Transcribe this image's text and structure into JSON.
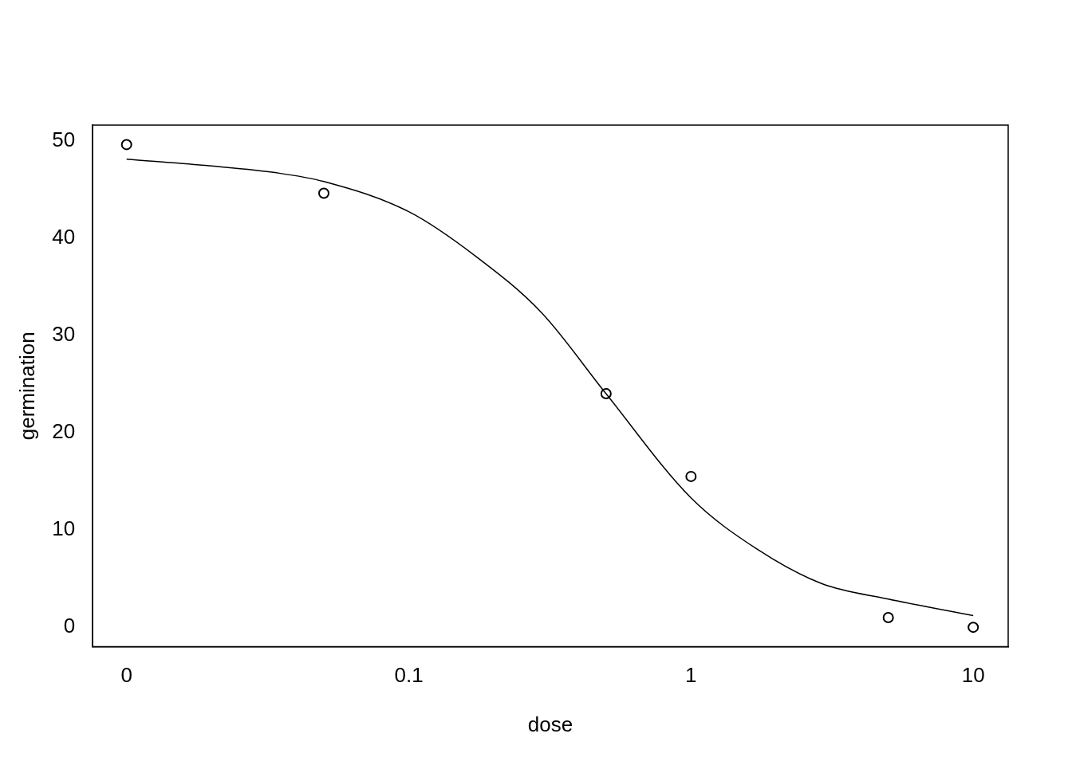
{
  "chart_data": {
    "type": "scatter",
    "xlabel": "dose",
    "ylabel": "germination",
    "log": "x",
    "grid": false,
    "legend": false,
    "xlim": [
      0.00758,
      13.3
    ],
    "xticks": [
      {
        "value": 0.01,
        "label": "0"
      },
      0.1,
      1,
      10
    ],
    "ylim": [
      -2,
      51.6
    ],
    "yticks": [
      0,
      10,
      20,
      30,
      40,
      50
    ],
    "series": [
      {
        "color": "#000000",
        "marker": "circle",
        "x": [
          0.01,
          0.05,
          0.5,
          1,
          5,
          10
        ],
        "values": [
          49.6,
          44.6,
          24.0,
          15.5,
          1.0,
          0.0
        ]
      },
      {
        "type": "line",
        "color": "#000000",
        "marker": "none",
        "line_style": "solid",
        "x": [
          0.01,
          0.02,
          0.034,
          0.05,
          0.1,
          0.173,
          0.296,
          0.5,
          1,
          1.72,
          2.9,
          5,
          10
        ],
        "values": [
          48.1,
          47.4,
          46.7,
          45.8,
          42.7,
          38.1,
          32.3,
          24.0,
          13.3,
          8.0,
          4.5,
          2.9,
          1.2
        ]
      }
    ]
  }
}
